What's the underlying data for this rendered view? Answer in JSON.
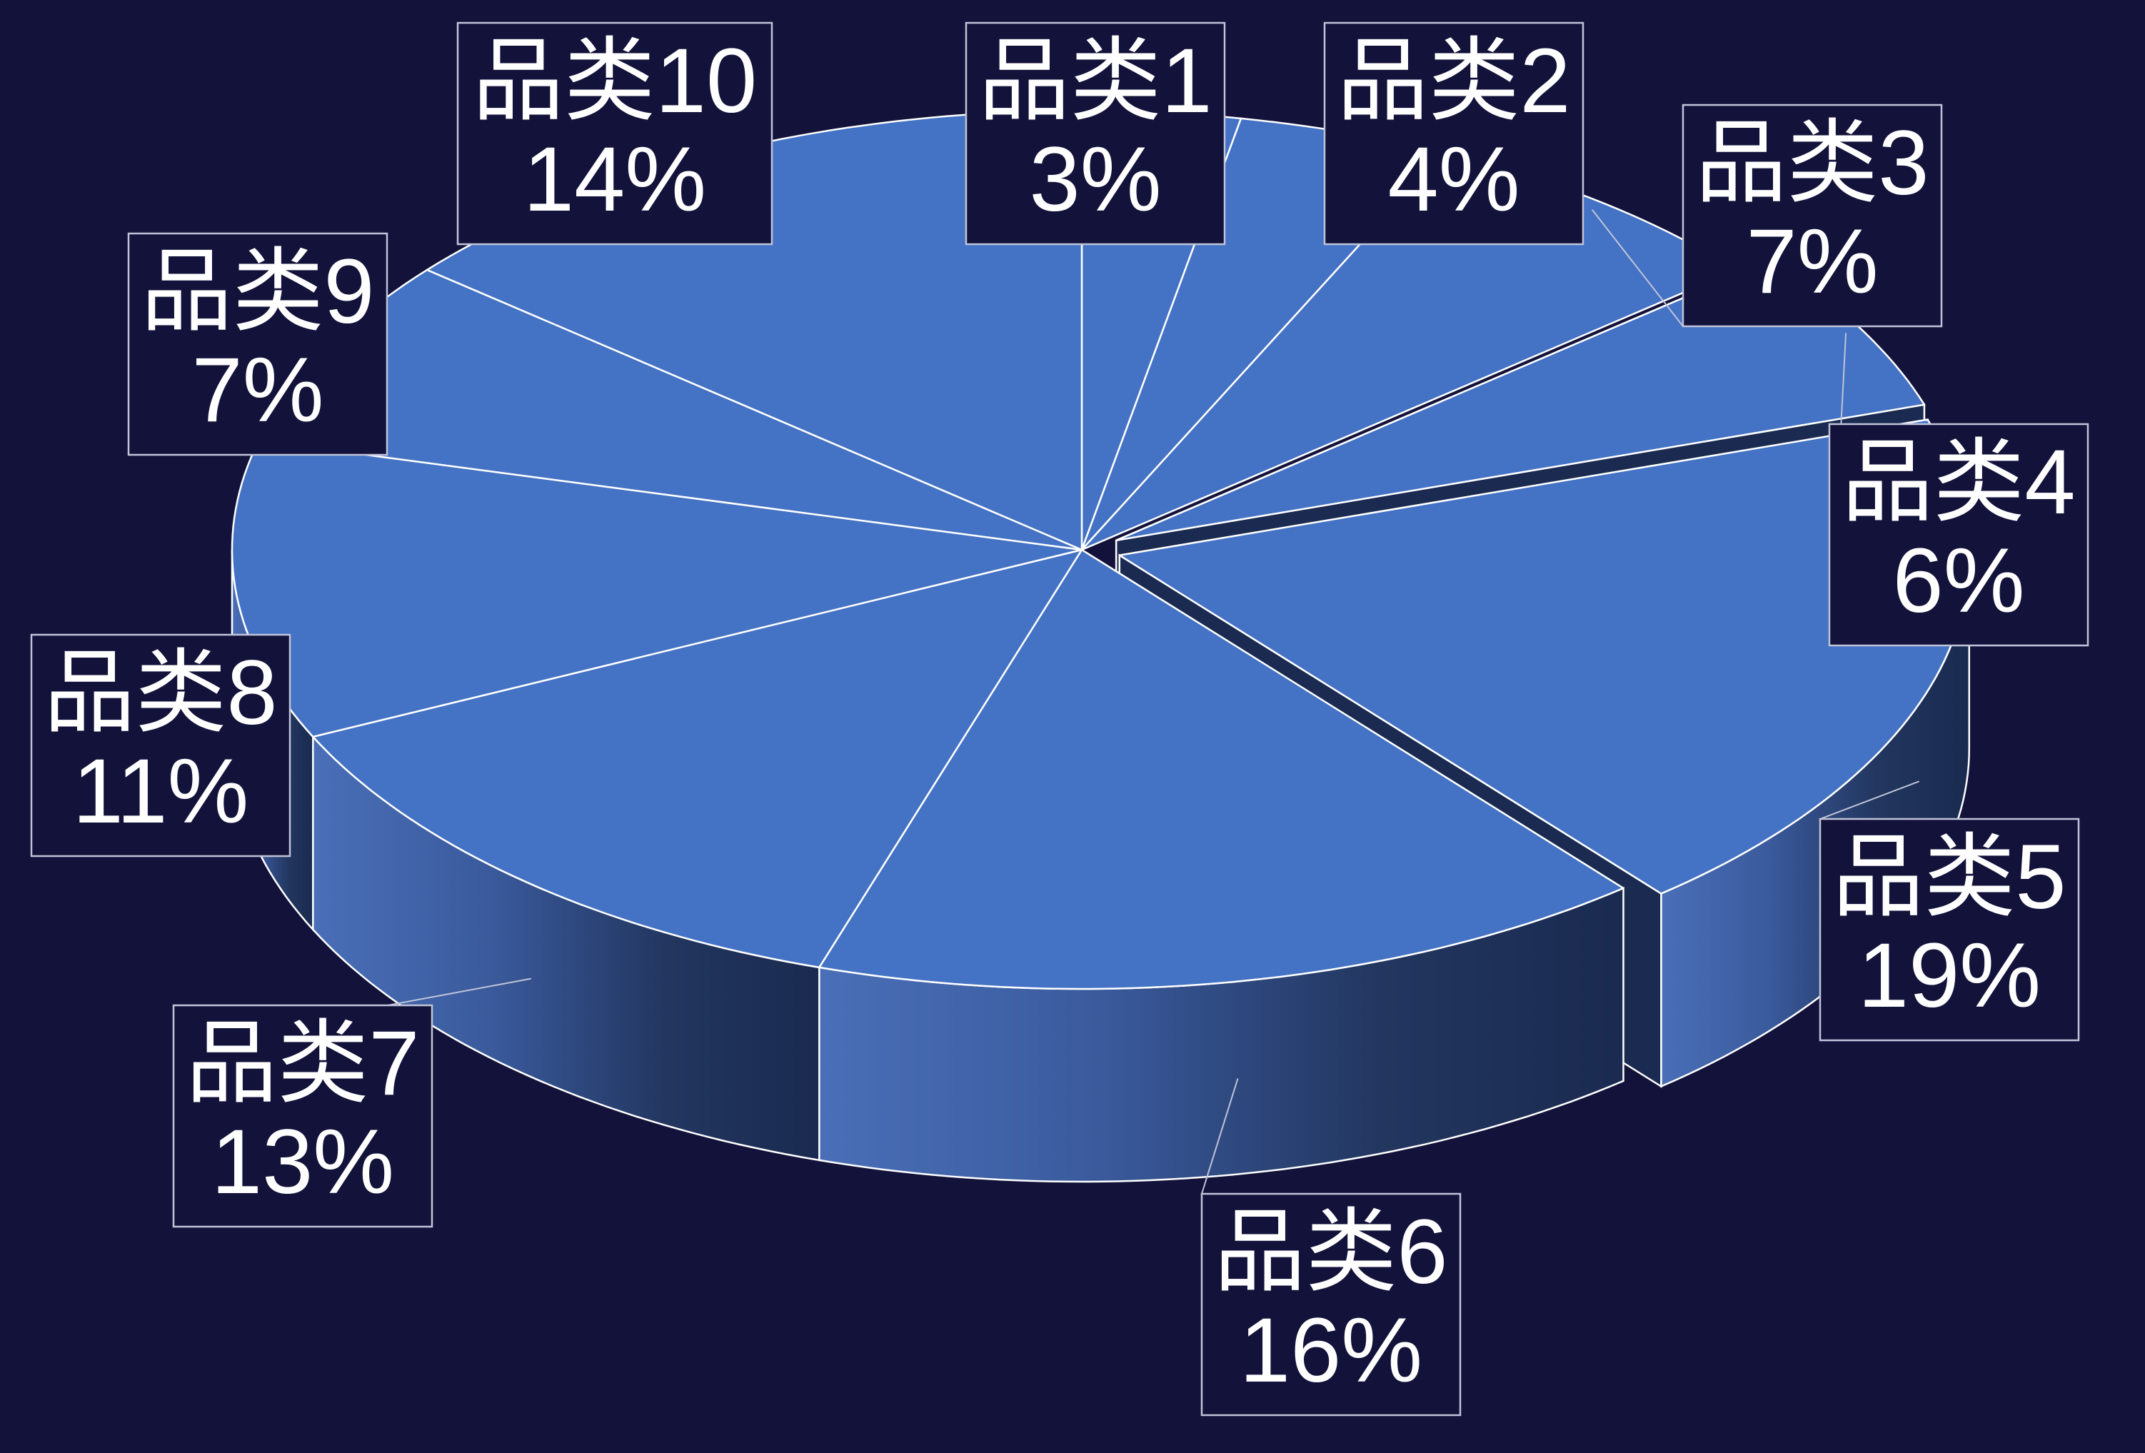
{
  "chart_data": {
    "type": "pie",
    "style": "3d-exploded",
    "categories": [
      "品类1",
      "品类2",
      "品类3",
      "品类4",
      "品类5",
      "品类6",
      "品类7",
      "品类8",
      "品类9",
      "品类10"
    ],
    "values": [
      3,
      4,
      7,
      6,
      19,
      16,
      13,
      11,
      7,
      14
    ],
    "value_labels": [
      "3%",
      "4%",
      "7%",
      "6%",
      "19%",
      "16%",
      "13%",
      "11%",
      "7%",
      "14%"
    ],
    "exploded_slices": [
      "品类4",
      "品类5"
    ],
    "legend": "none",
    "colors": {
      "background": "#13123a",
      "top_face": "#4472c4",
      "slice_edge": "#ffffff",
      "label_border": "#c0c4d8",
      "side_light": "#4a6fb8",
      "side_dark": "#1a2a50"
    }
  }
}
